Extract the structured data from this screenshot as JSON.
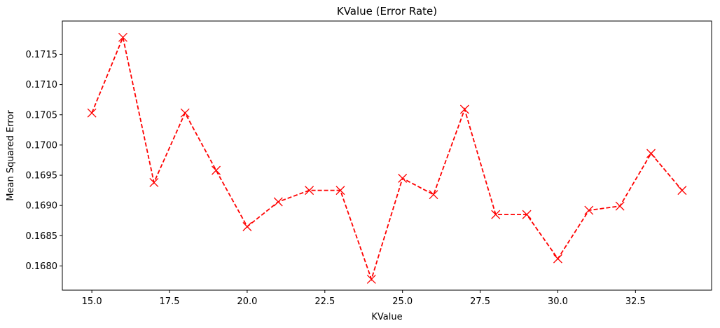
{
  "chart_data": {
    "type": "line",
    "title": "KValue (Error Rate)",
    "xlabel": "KValue",
    "ylabel": "Mean Squared Error",
    "x": [
      15,
      16,
      17,
      18,
      19,
      20,
      21,
      22,
      23,
      24,
      25,
      26,
      27,
      28,
      29,
      30,
      31,
      32,
      33,
      34
    ],
    "series": [
      {
        "values": [
          0.17053,
          0.17178,
          0.16938,
          0.17053,
          0.16958,
          0.16865,
          0.16906,
          0.16925,
          0.16925,
          0.16778,
          0.16945,
          0.16918,
          0.17059,
          0.16885,
          0.16885,
          0.16812,
          0.16892,
          0.16899,
          0.16986,
          0.16925
        ],
        "color": "#ff0000",
        "line_style": "dashed",
        "marker": "x"
      }
    ],
    "xlim": [
      14.05,
      34.95
    ],
    "ylim": [
      0.1676,
      0.17205
    ],
    "x_ticks": [
      "15.0",
      "17.5",
      "20.0",
      "22.5",
      "25.0",
      "27.5",
      "30.0",
      "32.5"
    ],
    "y_ticks": [
      "0.1680",
      "0.1685",
      "0.1690",
      "0.1695",
      "0.1700",
      "0.1705",
      "0.1710",
      "0.1715"
    ],
    "grid": false,
    "legend": "none"
  }
}
